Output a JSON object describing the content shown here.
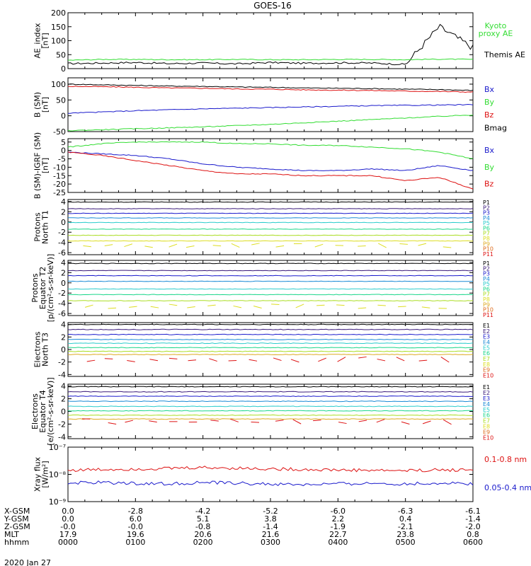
{
  "title": "GOES-16",
  "date_label": "2020 Jan 27",
  "colors": {
    "black": "#000000",
    "green": "#33dd33",
    "blue": "#1a1acc",
    "red": "#dd1111",
    "P1": "#000000",
    "P2": "#3a1a7a",
    "P3": "#1a1acc",
    "P4": "#1a8ad6",
    "P5": "#2acccc",
    "P6": "#1ad68a",
    "P7": "#aadd22",
    "P8": "#dddd22",
    "P9": "#ddaa22",
    "P10": "#dd6a1a",
    "P11": "#dd1111"
  },
  "chart_data": [
    {
      "type": "line",
      "name": "AE index",
      "ylabel": [
        "AE_index",
        "[nT]"
      ],
      "ylim": [
        0,
        200
      ],
      "yticks": [
        "200",
        "150",
        "100",
        "50",
        "0"
      ],
      "ytick_values": [
        200,
        150,
        100,
        50,
        0
      ],
      "x": [
        0,
        0.5,
        1,
        1.5,
        2,
        2.5,
        3,
        3.5,
        4,
        4.5,
        5,
        5.5,
        6
      ],
      "series": [
        {
          "name": "Themis AE",
          "color": "black",
          "values": [
            18,
            20,
            22,
            18,
            20,
            17,
            22,
            19,
            21,
            20,
            15,
            150,
            75
          ]
        },
        {
          "name": "Kyoto proxy AE",
          "color": "green",
          "values": [
            30,
            33,
            33,
            32,
            32,
            33,
            32,
            32,
            33,
            33,
            32,
            34,
            33
          ]
        }
      ],
      "legend": [
        {
          "text": "Kyoto",
          "color": "green"
        },
        {
          "text": "proxy AE",
          "color": "green"
        },
        {
          "text": "Themis AE",
          "color": "black"
        }
      ]
    },
    {
      "type": "line",
      "name": "B (SM)",
      "ylabel": [
        "B (SM)",
        "[nT]"
      ],
      "ylim": [
        -50,
        120
      ],
      "yticks": [
        "100",
        "50",
        "0",
        "-50"
      ],
      "ytick_values": [
        100,
        50,
        0,
        -50
      ],
      "x": [
        0,
        0.5,
        1,
        1.5,
        2,
        2.5,
        3,
        3.5,
        4,
        4.5,
        5,
        5.5,
        6
      ],
      "series": [
        {
          "name": "Bmag",
          "color": "black",
          "values": [
            100,
            98,
            96,
            94,
            93,
            91,
            90,
            88,
            87,
            86,
            84,
            83,
            80
          ]
        },
        {
          "name": "Bz",
          "color": "red",
          "values": [
            93,
            92,
            90,
            88,
            87,
            85,
            84,
            82,
            81,
            80,
            78,
            77,
            75
          ]
        },
        {
          "name": "Bx",
          "color": "blue",
          "values": [
            8,
            12,
            16,
            19,
            22,
            24,
            26,
            28,
            30,
            32,
            33,
            34,
            35
          ]
        },
        {
          "name": "By",
          "color": "green",
          "values": [
            -47,
            -44,
            -41,
            -38,
            -35,
            -31,
            -27,
            -22,
            -17,
            -12,
            -7,
            -2,
            3
          ]
        }
      ],
      "legend": [
        {
          "text": "Bx",
          "color": "blue"
        },
        {
          "text": "By",
          "color": "green"
        },
        {
          "text": "Bz",
          "color": "red"
        },
        {
          "text": "Bmag",
          "color": "black"
        }
      ]
    },
    {
      "type": "line",
      "name": "B (SM)-IGRF (SM)",
      "ylabel": [
        "B (SM)-IGRF (SM)",
        "[nT]"
      ],
      "ylim": [
        -25,
        7
      ],
      "yticks": [
        "5",
        "0",
        "-5",
        "-10",
        "-15",
        "-20",
        "-25"
      ],
      "ytick_values": [
        5,
        0,
        -5,
        -10,
        -15,
        -20,
        -25
      ],
      "x": [
        0,
        0.5,
        1,
        1.5,
        2,
        2.5,
        3,
        3.5,
        4,
        4.5,
        5,
        5.5,
        6
      ],
      "series": [
        {
          "name": "Bx",
          "color": "blue",
          "values": [
            -1,
            -2,
            -3,
            -5,
            -8,
            -10,
            -11,
            -12,
            -12,
            -11,
            -12,
            -9,
            -12
          ]
        },
        {
          "name": "By",
          "color": "green",
          "values": [
            2,
            4,
            5,
            5,
            5,
            4,
            4,
            3,
            3,
            2,
            1,
            -1,
            -5
          ]
        },
        {
          "name": "Bz",
          "color": "red",
          "values": [
            -1,
            -3,
            -6,
            -9,
            -12,
            -14,
            -14,
            -15,
            -15,
            -15,
            -18,
            -16,
            -23
          ]
        }
      ],
      "legend": [
        {
          "text": "Bx",
          "color": "blue"
        },
        {
          "text": "By",
          "color": "green"
        },
        {
          "text": "Bz",
          "color": "red"
        }
      ]
    },
    {
      "type": "line",
      "name": "Protons North T1",
      "ylabel": [
        "Protons",
        "North T1"
      ],
      "log": true,
      "ylim": [
        -6.4,
        4.4
      ],
      "yticks": [
        "-6",
        "-4",
        "-2",
        "0",
        "2",
        "4"
      ],
      "ytick_values": [
        -6,
        -4,
        -2,
        0,
        2,
        4
      ],
      "x": [
        0,
        6
      ],
      "series": [
        {
          "name": "P1",
          "color": "P1",
          "values": [
            3.9,
            3.9
          ]
        },
        {
          "name": "P2",
          "color": "P2",
          "values": [
            2.6,
            2.6
          ]
        },
        {
          "name": "P3",
          "color": "P3",
          "values": [
            1.7,
            1.7
          ]
        },
        {
          "name": "P4",
          "color": "P4",
          "values": [
            0.8,
            0.8
          ]
        },
        {
          "name": "P5",
          "color": "P5",
          "values": [
            -0.1,
            -0.1
          ]
        },
        {
          "name": "P6",
          "color": "P6",
          "values": [
            -1.4,
            -1.4
          ]
        },
        {
          "name": "P7",
          "color": "P7",
          "values": [
            -2.6,
            -2.6
          ]
        },
        {
          "name": "P8",
          "color": "P8",
          "values": [
            -3.7,
            -3.7
          ]
        }
      ],
      "legend": [
        {
          "text": "P1",
          "color": "P1"
        },
        {
          "text": "P2",
          "color": "P2"
        },
        {
          "text": "P3",
          "color": "P3"
        },
        {
          "text": "P4",
          "color": "P4"
        },
        {
          "text": "P5",
          "color": "P5"
        },
        {
          "text": "P6",
          "color": "P6"
        },
        {
          "text": "P7",
          "color": "P7"
        },
        {
          "text": "P8",
          "color": "P8"
        },
        {
          "text": "P9",
          "color": "P9"
        },
        {
          "text": "P10",
          "color": "P10"
        },
        {
          "text": "P11",
          "color": "P11"
        }
      ]
    },
    {
      "type": "line",
      "name": "Protons Equator T2",
      "ylabel": [
        "Protons",
        "Equator T2",
        "[p/(cm²-s-sr-keV)]"
      ],
      "log": true,
      "ylim": [
        -6.4,
        4.4
      ],
      "yticks": [
        "-6",
        "-4",
        "-2",
        "0",
        "2",
        "4"
      ],
      "ytick_values": [
        -6,
        -4,
        -2,
        0,
        2,
        4
      ],
      "x": [
        0,
        6
      ],
      "series": [
        {
          "name": "P1",
          "color": "P1",
          "values": [
            3.8,
            3.8
          ]
        },
        {
          "name": "P2",
          "color": "P2",
          "values": [
            2.4,
            2.4
          ]
        },
        {
          "name": "P3",
          "color": "P3",
          "values": [
            1.4,
            1.4
          ]
        },
        {
          "name": "P4",
          "color": "P4",
          "values": [
            0.3,
            0.3
          ]
        },
        {
          "name": "P5",
          "color": "P5",
          "values": [
            -1.2,
            -1.2
          ]
        },
        {
          "name": "P6",
          "color": "P6",
          "values": [
            -2.3,
            -2.3
          ]
        },
        {
          "name": "P7",
          "color": "P7",
          "values": [
            -3.5,
            -3.5
          ]
        }
      ],
      "legend": [
        {
          "text": "P1",
          "color": "P1"
        },
        {
          "text": "P2",
          "color": "P2"
        },
        {
          "text": "P3",
          "color": "P3"
        },
        {
          "text": "P4",
          "color": "P4"
        },
        {
          "text": "P5",
          "color": "P5"
        },
        {
          "text": "P6",
          "color": "P6"
        },
        {
          "text": "P7",
          "color": "P7"
        },
        {
          "text": "P8",
          "color": "P8"
        },
        {
          "text": "P9",
          "color": "P9"
        },
        {
          "text": "P10",
          "color": "P10"
        },
        {
          "text": "P11",
          "color": "P11"
        }
      ]
    },
    {
      "type": "line",
      "name": "Electrons North T3",
      "ylabel": [
        "Electrons",
        "North T3"
      ],
      "log": true,
      "ylim": [
        -4.3,
        4.3
      ],
      "yticks": [
        "-4",
        "-2",
        "0",
        "2",
        "4"
      ],
      "ytick_values": [
        -4,
        -2,
        0,
        2,
        4
      ],
      "x": [
        0,
        6
      ],
      "series": [
        {
          "name": "E1",
          "color": "P1",
          "values": [
            4.0,
            4.0
          ]
        },
        {
          "name": "E2",
          "color": "P2",
          "values": [
            3.2,
            3.2
          ]
        },
        {
          "name": "E3",
          "color": "P3",
          "values": [
            2.4,
            2.4
          ]
        },
        {
          "name": "E4",
          "color": "P4",
          "values": [
            1.6,
            1.6
          ]
        },
        {
          "name": "E5",
          "color": "P5",
          "values": [
            1.0,
            1.0
          ]
        },
        {
          "name": "E6",
          "color": "P6",
          "values": [
            0.3,
            0.3
          ]
        },
        {
          "name": "E7",
          "color": "P7",
          "values": [
            -0.3,
            -0.3
          ]
        },
        {
          "name": "E8",
          "color": "P9",
          "values": [
            -0.8,
            -0.8
          ]
        }
      ],
      "legend": [
        {
          "text": "E1",
          "color": "P1"
        },
        {
          "text": "E2",
          "color": "P2"
        },
        {
          "text": "E3",
          "color": "P3"
        },
        {
          "text": "E4",
          "color": "P4"
        },
        {
          "text": "E5",
          "color": "P5"
        },
        {
          "text": "E6",
          "color": "P6"
        },
        {
          "text": "E7",
          "color": "P7"
        },
        {
          "text": "E8",
          "color": "P8"
        },
        {
          "text": "E9",
          "color": "P10"
        },
        {
          "text": "E10",
          "color": "P11"
        }
      ]
    },
    {
      "type": "line",
      "name": "Electrons Equator T4",
      "ylabel": [
        "Electrons",
        "Equator T4",
        "[e/(cm²-s-sr-keV)]"
      ],
      "log": true,
      "ylim": [
        -4.3,
        4.3
      ],
      "yticks": [
        "-4",
        "-2",
        "0",
        "2",
        "4"
      ],
      "ytick_values": [
        -4,
        -2,
        0,
        2,
        4
      ],
      "x": [
        0,
        6
      ],
      "series": [
        {
          "name": "E1",
          "color": "P1",
          "values": [
            3.9,
            3.9
          ]
        },
        {
          "name": "E2",
          "color": "P2",
          "values": [
            3.1,
            3.1
          ]
        },
        {
          "name": "E3",
          "color": "P3",
          "values": [
            2.4,
            2.4
          ]
        },
        {
          "name": "E4",
          "color": "P4",
          "values": [
            1.6,
            1.6
          ]
        },
        {
          "name": "E5",
          "color": "P5",
          "values": [
            0.8,
            0.8
          ]
        },
        {
          "name": "E6",
          "color": "P6",
          "values": [
            0.1,
            0.1
          ]
        },
        {
          "name": "E7",
          "color": "P7",
          "values": [
            -0.6,
            -0.6
          ]
        },
        {
          "name": "E8",
          "color": "P9",
          "values": [
            -1.2,
            -1.2
          ]
        }
      ],
      "legend": [
        {
          "text": "E1",
          "color": "P1"
        },
        {
          "text": "E2",
          "color": "P2"
        },
        {
          "text": "E3",
          "color": "P3"
        },
        {
          "text": "E4",
          "color": "P4"
        },
        {
          "text": "E5",
          "color": "P5"
        },
        {
          "text": "E6",
          "color": "P6"
        },
        {
          "text": "E7",
          "color": "P7"
        },
        {
          "text": "E8",
          "color": "P8"
        },
        {
          "text": "E9",
          "color": "P10"
        },
        {
          "text": "E10",
          "color": "P11"
        }
      ]
    },
    {
      "type": "line",
      "name": "Xray flux",
      "ylabel": [
        "Xray flux",
        "[W/m²]"
      ],
      "log": true,
      "ylim": [
        -9,
        -7
      ],
      "yticks": [
        "10⁻⁷",
        "10⁻⁸",
        "10⁻⁹"
      ],
      "ytick_values": [
        -7,
        -8,
        -9
      ],
      "x": [
        0,
        0.5,
        1,
        1.5,
        2,
        2.5,
        3,
        3.5,
        4,
        4.5,
        5,
        5.5,
        6
      ],
      "series": [
        {
          "name": "0.1-0.8 nm",
          "color": "red",
          "values": [
            -7.85,
            -7.82,
            -7.8,
            -7.78,
            -7.75,
            -7.77,
            -7.8,
            -7.82,
            -7.84,
            -7.85,
            -7.86,
            -7.84,
            -7.83
          ]
        },
        {
          "name": "0.05-0.4 nm",
          "color": "blue",
          "values": [
            -8.32,
            -8.3,
            -8.33,
            -8.35,
            -8.3,
            -8.32,
            -8.36,
            -8.38,
            -8.35,
            -8.33,
            -8.35,
            -8.32,
            -8.34
          ]
        }
      ],
      "legend": [
        {
          "text": "0.1-0.8 nm",
          "color": "red"
        },
        {
          "text": "0.05-0.4 nm",
          "color": "blue"
        }
      ]
    }
  ],
  "x_axis": {
    "range_hours": [
      0,
      6
    ],
    "ticks": [
      0,
      1,
      2,
      3,
      4,
      5,
      6
    ],
    "rows": [
      {
        "label": "X-GSM",
        "values": [
          "0.0",
          "-2.8",
          "-4.2",
          "-5.2",
          "-6.0",
          "-6.3",
          "-6.1"
        ]
      },
      {
        "label": "Y-GSM",
        "values": [
          "0.0",
          "6.0",
          "5.1",
          "3.8",
          "2.2",
          "0.4",
          "-1.4"
        ]
      },
      {
        "label": "Z-GSM",
        "values": [
          "-0.0",
          "-0.0",
          "-0.8",
          "-1.4",
          "-1.9",
          "-2.1",
          "-2.0"
        ]
      },
      {
        "label": "MLT",
        "values": [
          "17.9",
          "19.6",
          "20.6",
          "21.6",
          "22.7",
          "23.8",
          "0.8"
        ]
      },
      {
        "label": "hhmm",
        "values": [
          "0000",
          "0100",
          "0200",
          "0300",
          "0400",
          "0500",
          "0600"
        ]
      }
    ]
  }
}
